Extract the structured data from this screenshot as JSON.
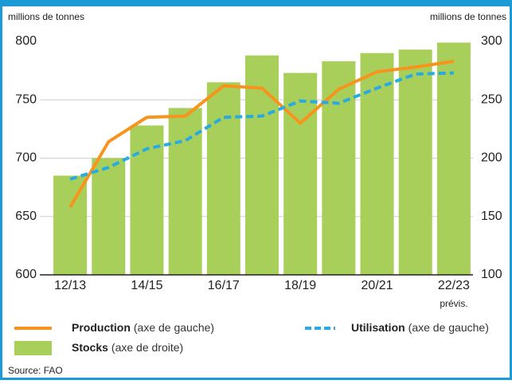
{
  "chart_data": {
    "type": "bar_line",
    "ylabel": "millions de tonnes",
    "y2label": "millions de tonnes",
    "categories": [
      "12/13",
      null,
      "14/15",
      null,
      "16/17",
      null,
      "18/19",
      null,
      "20/21",
      null,
      "22/23"
    ],
    "note": "prévis.",
    "series": [
      {
        "name": "Stocks",
        "axis_note": "(axe de droite)",
        "kind": "bar",
        "axis": "y2",
        "color": "#a8cf5a",
        "values": [
          185,
          200,
          228,
          243,
          265,
          288,
          273,
          283,
          290,
          293,
          299
        ]
      },
      {
        "name": "Production",
        "axis_note": "(axe de gauche)",
        "kind": "line",
        "color": "#f7941d",
        "values": [
          658,
          714,
          735,
          736,
          762,
          760,
          730,
          759,
          774,
          778,
          783
        ]
      },
      {
        "name": "Utilisation",
        "axis_note": "(axe de gauche)",
        "kind": "dashed",
        "color": "#29abe2",
        "values": [
          682,
          692,
          708,
          715,
          735,
          736,
          749,
          747,
          760,
          772,
          773
        ]
      }
    ],
    "ylim": [
      600,
      800
    ],
    "yticks": [
      600,
      650,
      700,
      750,
      800
    ],
    "y2lim": [
      100,
      300
    ],
    "y2ticks": [
      100,
      150,
      200,
      250,
      300
    ],
    "grid": true,
    "source": "Source: FAO"
  }
}
